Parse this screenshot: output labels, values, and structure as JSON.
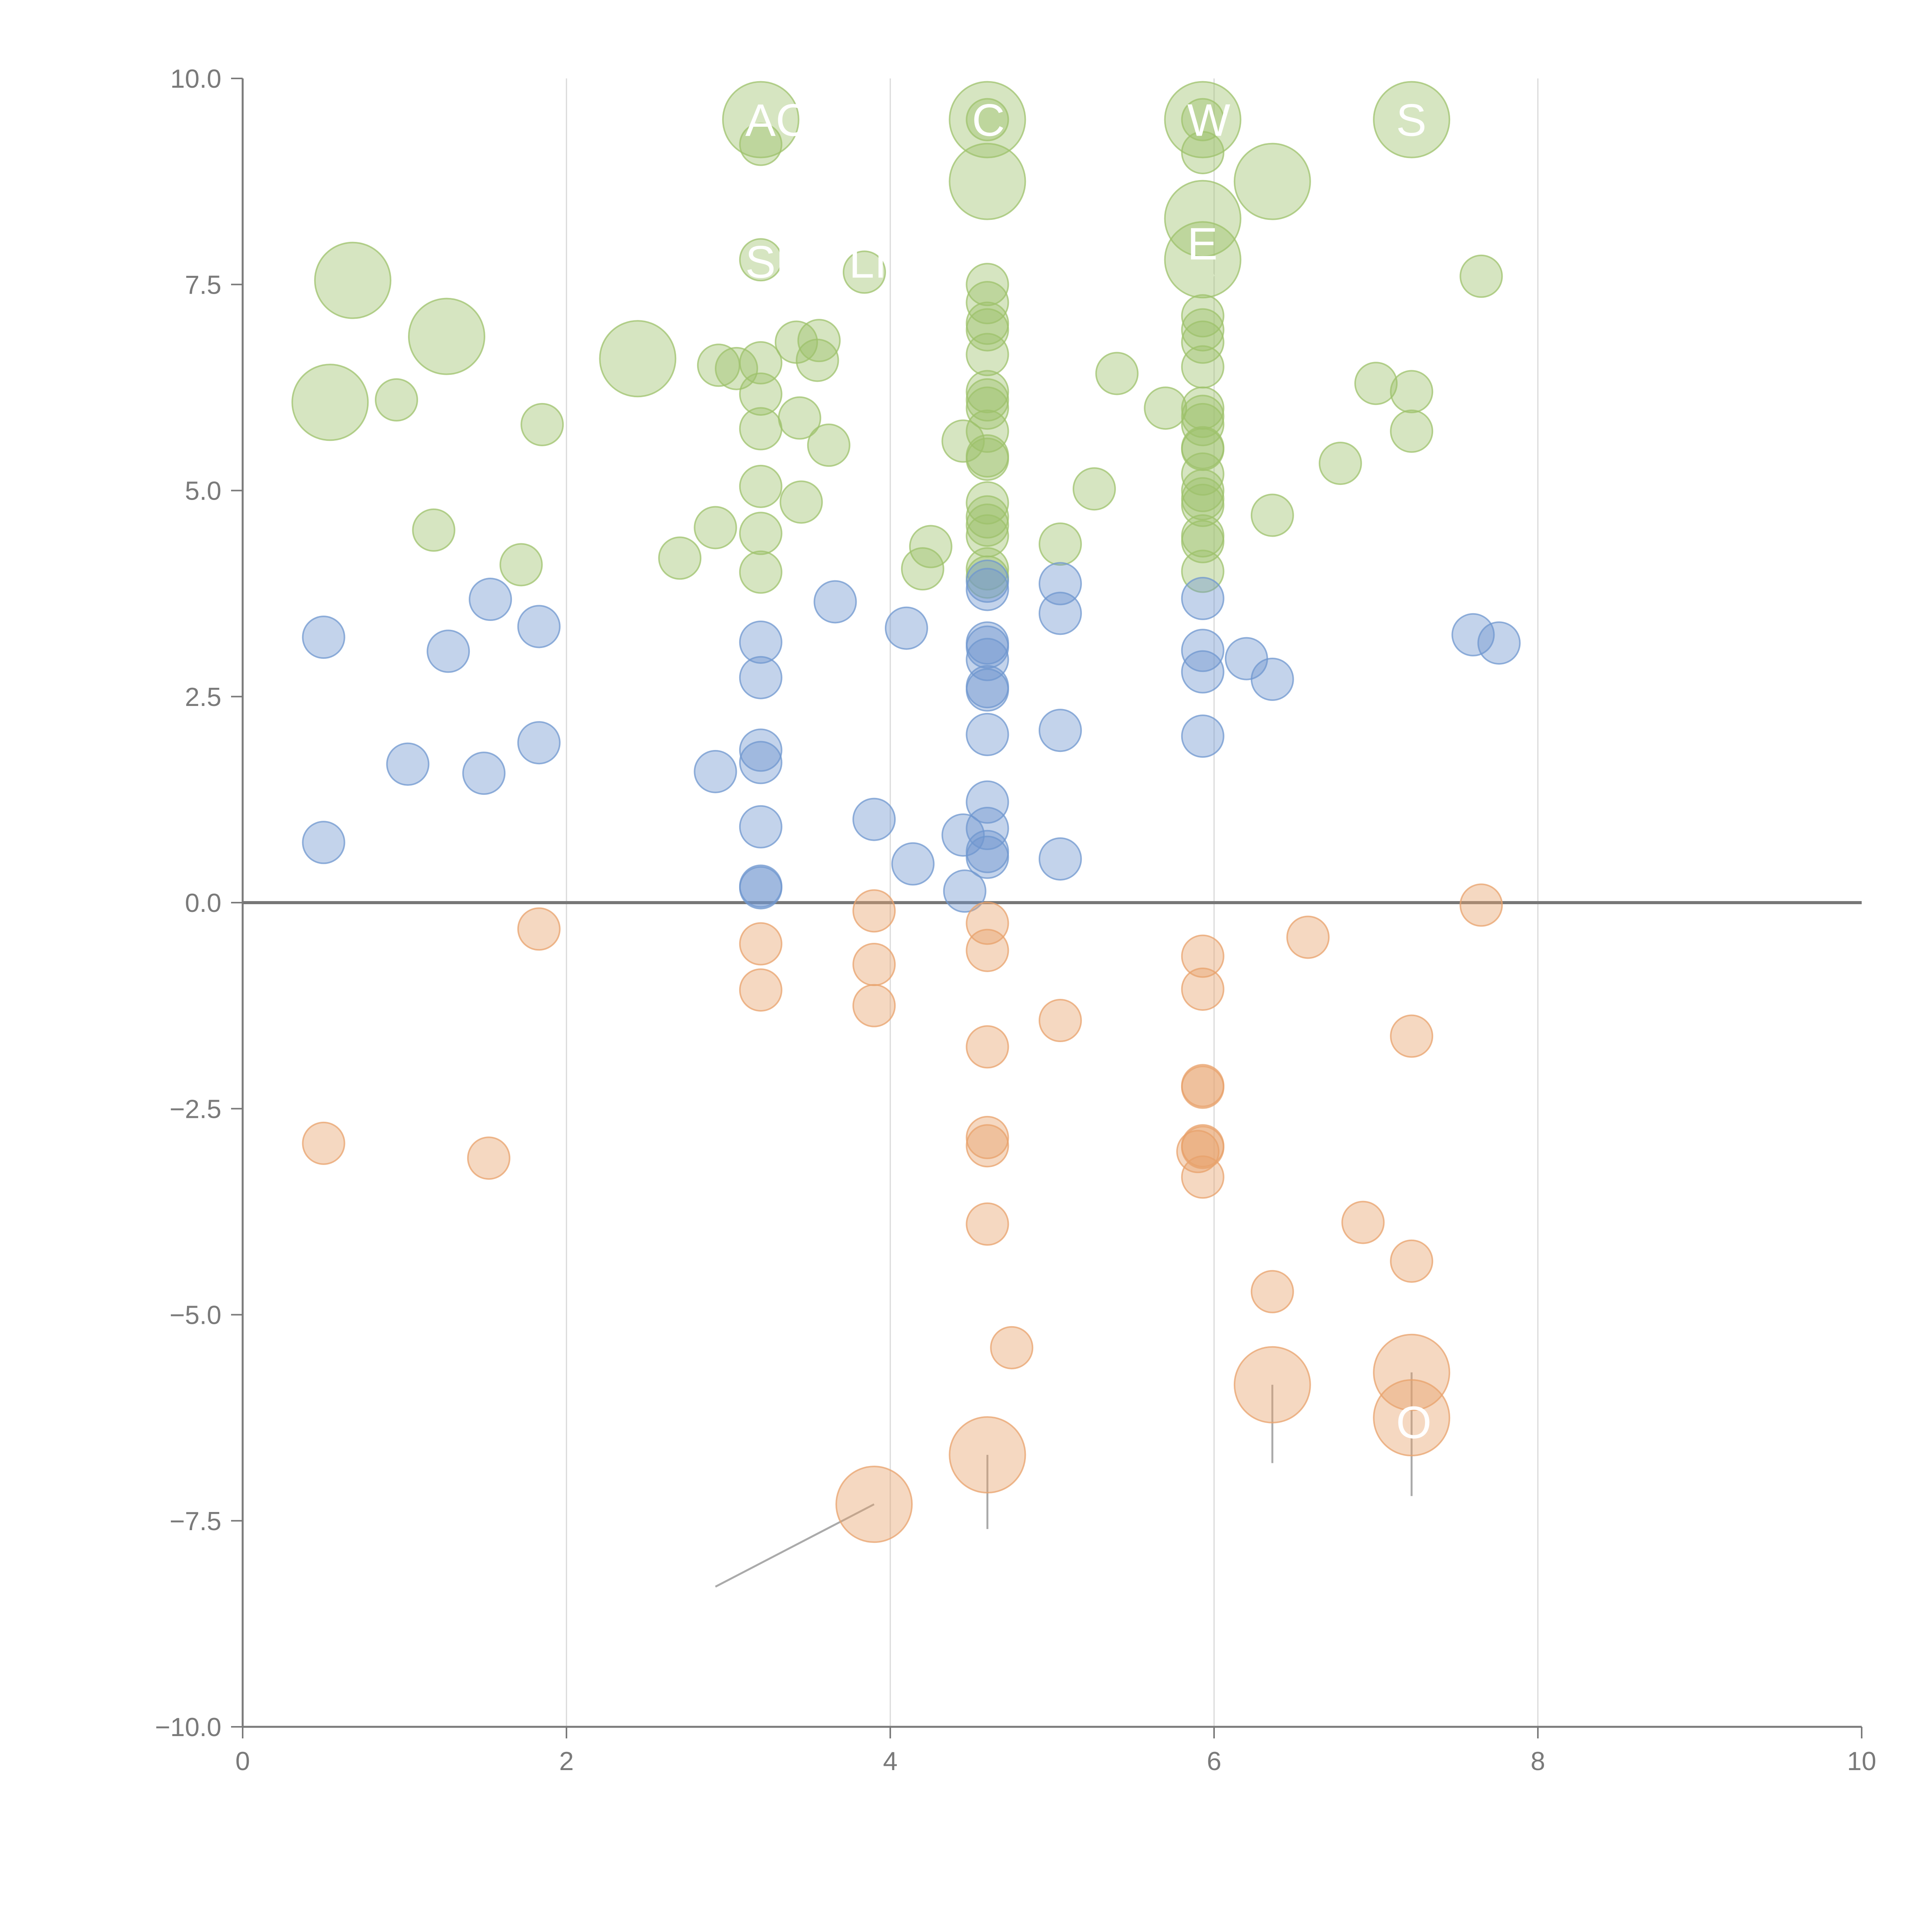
{
  "chart_data": {
    "type": "scatter",
    "title": "",
    "xlabel": "",
    "ylabel": "",
    "xlim": [
      0,
      10
    ],
    "ylim": [
      -10,
      10
    ],
    "x_ticks": [
      "0",
      "2",
      "4",
      "6",
      "8",
      "10"
    ],
    "y_ticks": [
      "10.0",
      "7.5",
      "5.0",
      "2.5",
      "0.0",
      "−2.5",
      "−5.0",
      "−7.5",
      "−10.0"
    ],
    "grid": "vertical",
    "zero_line": true,
    "colors": {
      "green": "#9dc26b",
      "blue": "#6f97cf",
      "orange": "#e8a16b",
      "axis": "#7a7a7a",
      "grid": "#d9d9d9",
      "zero": "#777777"
    },
    "series": [
      {
        "color": "green",
        "points": [
          [
            3.2,
            9.5,
            2
          ],
          [
            3.2,
            9.2,
            0
          ],
          [
            4.6,
            9.5,
            2
          ],
          [
            4.6,
            9.5,
            0
          ],
          [
            4.6,
            8.75,
            2
          ],
          [
            5.93,
            9.5,
            2
          ],
          [
            5.93,
            9.5,
            0
          ],
          [
            5.93,
            9.1,
            0
          ],
          [
            5.93,
            8.3,
            2
          ],
          [
            5.93,
            7.8,
            2
          ],
          [
            6.36,
            8.75,
            2
          ],
          [
            7.22,
            9.5,
            2
          ],
          [
            0.68,
            7.55,
            2
          ],
          [
            1.26,
            6.87,
            2
          ],
          [
            0.54,
            6.07,
            2
          ],
          [
            2.44,
            6.6,
            2
          ],
          [
            0.95,
            6.1,
            0
          ],
          [
            1.85,
            5.8,
            0
          ],
          [
            1.18,
            4.52,
            0
          ],
          [
            1.72,
            4.1,
            0
          ],
          [
            2.7,
            4.18,
            0
          ],
          [
            2.92,
            4.55,
            0
          ],
          [
            2.94,
            6.52,
            0
          ],
          [
            3.05,
            6.48,
            0
          ],
          [
            3.2,
            7.8,
            0
          ],
          [
            3.2,
            6.55,
            0
          ],
          [
            3.2,
            6.17,
            0
          ],
          [
            3.2,
            5.75,
            0
          ],
          [
            3.2,
            5.05,
            0
          ],
          [
            3.2,
            4.48,
            0
          ],
          [
            3.2,
            4.01,
            0
          ],
          [
            3.42,
            6.8,
            0
          ],
          [
            3.44,
            5.88,
            0
          ],
          [
            3.45,
            4.86,
            0
          ],
          [
            3.55,
            6.58,
            0
          ],
          [
            3.56,
            6.82,
            0
          ],
          [
            3.62,
            5.55,
            0
          ],
          [
            3.84,
            7.65,
            0
          ],
          [
            4.2,
            4.05,
            0
          ],
          [
            4.25,
            4.32,
            0
          ],
          [
            4.45,
            5.6,
            0
          ],
          [
            4.6,
            7.5,
            0
          ],
          [
            4.6,
            7.28,
            0
          ],
          [
            4.6,
            7.03,
            0
          ],
          [
            4.6,
            6.95,
            0
          ],
          [
            4.6,
            6.65,
            0
          ],
          [
            4.6,
            6.2,
            0
          ],
          [
            4.6,
            6.1,
            0
          ],
          [
            4.6,
            6.0,
            0
          ],
          [
            4.6,
            5.72,
            0
          ],
          [
            4.6,
            5.42,
            0
          ],
          [
            4.6,
            5.38,
            0
          ],
          [
            4.6,
            4.85,
            0
          ],
          [
            4.6,
            4.68,
            0
          ],
          [
            4.6,
            4.58,
            0
          ],
          [
            4.6,
            4.45,
            0
          ],
          [
            4.6,
            4.05,
            0
          ],
          [
            4.6,
            3.95,
            0
          ],
          [
            5.05,
            4.35,
            0
          ],
          [
            5.26,
            5.02,
            0
          ],
          [
            5.4,
            6.42,
            0
          ],
          [
            5.7,
            6.0,
            0
          ],
          [
            5.93,
            7.12,
            0
          ],
          [
            5.93,
            6.95,
            0
          ],
          [
            5.93,
            6.8,
            0
          ],
          [
            5.93,
            6.5,
            0
          ],
          [
            5.93,
            6.0,
            0
          ],
          [
            5.93,
            5.9,
            0
          ],
          [
            5.93,
            5.8,
            0
          ],
          [
            5.93,
            5.52,
            0
          ],
          [
            5.93,
            5.5,
            0
          ],
          [
            5.93,
            5.2,
            0
          ],
          [
            5.93,
            5.0,
            0
          ],
          [
            5.93,
            4.9,
            0
          ],
          [
            5.93,
            4.82,
            0
          ],
          [
            5.93,
            4.45,
            0
          ],
          [
            5.93,
            4.38,
            0
          ],
          [
            5.93,
            4.02,
            0
          ],
          [
            6.36,
            4.7,
            0
          ],
          [
            6.78,
            5.33,
            0
          ],
          [
            7.0,
            6.3,
            0
          ],
          [
            7.22,
            6.2,
            0
          ],
          [
            7.22,
            5.72,
            0
          ],
          [
            7.65,
            7.6,
            0
          ]
        ]
      },
      {
        "color": "blue",
        "points": [
          [
            0.5,
            3.22,
            0
          ],
          [
            0.5,
            0.73,
            0
          ],
          [
            1.02,
            1.68,
            0
          ],
          [
            1.27,
            3.05,
            0
          ],
          [
            1.49,
            1.57,
            0
          ],
          [
            1.53,
            3.68,
            0
          ],
          [
            1.83,
            3.35,
            0
          ],
          [
            1.83,
            1.94,
            0
          ],
          [
            2.92,
            1.59,
            0
          ],
          [
            3.2,
            3.16,
            0
          ],
          [
            3.2,
            2.73,
            0
          ],
          [
            3.2,
            1.85,
            0
          ],
          [
            3.2,
            1.7,
            0
          ],
          [
            3.2,
            0.92,
            0
          ],
          [
            3.2,
            0.2,
            0
          ],
          [
            3.2,
            0.18,
            0
          ],
          [
            3.66,
            3.65,
            0
          ],
          [
            3.9,
            1.01,
            0
          ],
          [
            4.1,
            3.33,
            0
          ],
          [
            4.14,
            0.47,
            0
          ],
          [
            4.45,
            0.82,
            0
          ],
          [
            4.46,
            0.14,
            0
          ],
          [
            4.6,
            3.9,
            0
          ],
          [
            4.6,
            3.8,
            0
          ],
          [
            4.6,
            3.15,
            0
          ],
          [
            4.6,
            3.1,
            0
          ],
          [
            4.6,
            2.95,
            0
          ],
          [
            4.6,
            2.62,
            0
          ],
          [
            4.6,
            2.58,
            0
          ],
          [
            4.6,
            2.04,
            0
          ],
          [
            4.6,
            1.22,
            0
          ],
          [
            4.6,
            0.9,
            0
          ],
          [
            4.6,
            0.62,
            0
          ],
          [
            4.6,
            0.55,
            0
          ],
          [
            5.05,
            3.87,
            0
          ],
          [
            5.05,
            3.51,
            0
          ],
          [
            5.05,
            2.09,
            0
          ],
          [
            5.05,
            0.53,
            0
          ],
          [
            5.93,
            3.69,
            0
          ],
          [
            5.93,
            3.06,
            0
          ],
          [
            5.93,
            2.8,
            0
          ],
          [
            5.93,
            2.02,
            0
          ],
          [
            6.2,
            2.96,
            0
          ],
          [
            6.36,
            2.71,
            0
          ],
          [
            7.6,
            3.25,
            0
          ],
          [
            7.76,
            3.15,
            0
          ]
        ]
      },
      {
        "color": "orange",
        "points": [
          [
            0.5,
            -2.92,
            0
          ],
          [
            1.52,
            -3.1,
            0
          ],
          [
            1.83,
            -0.32,
            0
          ],
          [
            3.2,
            -0.5,
            0
          ],
          [
            3.2,
            -1.06,
            0
          ],
          [
            3.9,
            -0.1,
            0
          ],
          [
            3.9,
            -0.75,
            0
          ],
          [
            3.9,
            -1.25,
            0
          ],
          [
            3.9,
            -7.3,
            2
          ],
          [
            4.6,
            -0.25,
            0
          ],
          [
            4.6,
            -0.58,
            0
          ],
          [
            4.6,
            -1.75,
            0
          ],
          [
            4.6,
            -2.85,
            0
          ],
          [
            4.6,
            -2.95,
            0
          ],
          [
            4.6,
            -3.9,
            0
          ],
          [
            4.6,
            -6.7,
            2
          ],
          [
            4.75,
            -5.4,
            0
          ],
          [
            5.05,
            -1.43,
            0
          ],
          [
            5.9,
            -3.02,
            0
          ],
          [
            5.93,
            -0.65,
            0
          ],
          [
            5.93,
            -1.05,
            0
          ],
          [
            5.93,
            -2.22,
            0
          ],
          [
            5.93,
            -2.24,
            0
          ],
          [
            5.93,
            -2.95,
            0
          ],
          [
            5.93,
            -2.97,
            0
          ],
          [
            5.93,
            -3.33,
            0
          ],
          [
            6.36,
            -4.72,
            0
          ],
          [
            6.36,
            -5.85,
            2
          ],
          [
            6.58,
            -0.42,
            0
          ],
          [
            6.92,
            -3.88,
            0
          ],
          [
            7.22,
            -1.62,
            0
          ],
          [
            7.22,
            -4.35,
            0
          ],
          [
            7.22,
            -5.7,
            2
          ],
          [
            7.22,
            -6.25,
            2
          ],
          [
            7.65,
            -0.03,
            0
          ]
        ]
      }
    ],
    "annotations": [
      {
        "text": "AC",
        "x": 3.2,
        "y": 9.5
      },
      {
        "text": "C",
        "x": 4.6,
        "y": 9.5
      },
      {
        "text": "W",
        "x": 5.93,
        "y": 9.5
      },
      {
        "text": "S",
        "x": 7.22,
        "y": 9.5
      },
      {
        "text": "SH",
        "x": 3.2,
        "y": 7.78
      },
      {
        "text": "LI",
        "x": 3.84,
        "y": 7.78
      },
      {
        "text": "E",
        "x": 5.93,
        "y": 8.0
      },
      {
        "text": "O",
        "x": 7.22,
        "y": -6.3
      }
    ],
    "leader_lines": [
      {
        "from": [
          0.68,
          7.55
        ],
        "to": [
          0.83,
          7.9
        ]
      },
      {
        "from": [
          1.26,
          6.87
        ],
        "to": [
          1.45,
          6.65
        ]
      },
      {
        "from": [
          0.54,
          6.07
        ],
        "to": [
          0.7,
          5.8
        ]
      },
      {
        "from": [
          2.44,
          6.6
        ],
        "to": [
          2.65,
          6.78
        ]
      },
      {
        "from": [
          4.6,
          8.75
        ],
        "to": [
          4.8,
          9.4
        ]
      },
      {
        "from": [
          5.93,
          7.8
        ],
        "to": [
          6.0,
          7.6
        ]
      },
      {
        "from": [
          6.36,
          8.75
        ],
        "to": [
          6.38,
          9.1
        ]
      },
      {
        "from": [
          3.9,
          -7.3
        ],
        "to": [
          2.92,
          -8.3
        ]
      },
      {
        "from": [
          4.6,
          -6.7
        ],
        "to": [
          4.6,
          -7.6
        ]
      },
      {
        "from": [
          6.36,
          -5.85
        ],
        "to": [
          6.36,
          -6.8
        ]
      },
      {
        "from": [
          7.22,
          -5.7
        ],
        "to": [
          7.22,
          -7.2
        ]
      }
    ]
  }
}
